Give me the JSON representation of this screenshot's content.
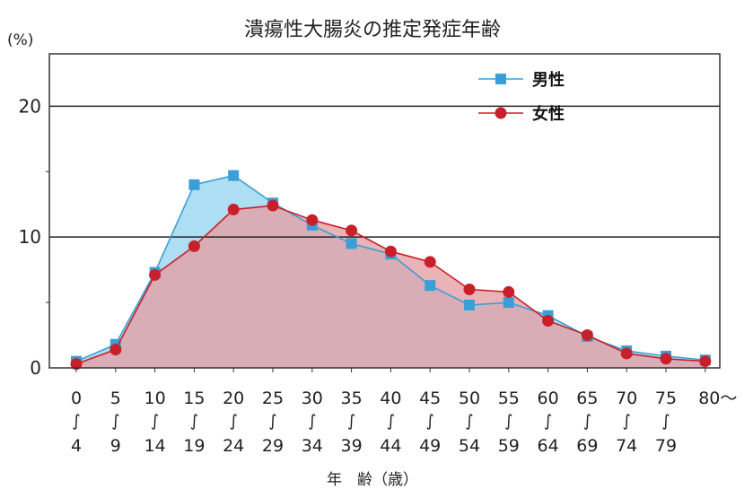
{
  "chart_data": {
    "type": "area",
    "title": "潰瘍性大腸炎の推定発症年齢",
    "ylabel": "(%)",
    "xlabel": "年　齢（歳）",
    "ylim": [
      0,
      24
    ],
    "yticks": [
      0,
      10,
      20
    ],
    "grid": true,
    "legend_position": "top-right",
    "categories": [
      {
        "top": "0",
        "bottom": "4"
      },
      {
        "top": "5",
        "bottom": "9"
      },
      {
        "top": "10",
        "bottom": "14"
      },
      {
        "top": "15",
        "bottom": "19"
      },
      {
        "top": "20",
        "bottom": "24"
      },
      {
        "top": "25",
        "bottom": "29"
      },
      {
        "top": "30",
        "bottom": "34"
      },
      {
        "top": "35",
        "bottom": "39"
      },
      {
        "top": "40",
        "bottom": "44"
      },
      {
        "top": "45",
        "bottom": "49"
      },
      {
        "top": "50",
        "bottom": "54"
      },
      {
        "top": "55",
        "bottom": "59"
      },
      {
        "top": "60",
        "bottom": "64"
      },
      {
        "top": "65",
        "bottom": "69"
      },
      {
        "top": "70",
        "bottom": "74"
      },
      {
        "top": "75",
        "bottom": "79"
      },
      {
        "top": "80～",
        "bottom": ""
      }
    ],
    "series": [
      {
        "name": "男性",
        "color": "#3a9fd6",
        "fill": "#a9dcf2",
        "marker": "square",
        "values": [
          0.5,
          1.8,
          7.3,
          14.0,
          14.7,
          12.6,
          10.9,
          9.5,
          8.7,
          6.3,
          4.8,
          5.0,
          4.0,
          2.4,
          1.3,
          0.9,
          0.6
        ]
      },
      {
        "name": "女性",
        "color": "#c8202a",
        "fill": "#e3a0a6",
        "marker": "circle",
        "values": [
          0.3,
          1.4,
          7.1,
          9.3,
          12.1,
          12.4,
          11.3,
          10.5,
          8.9,
          8.1,
          6.0,
          5.8,
          3.6,
          2.5,
          1.1,
          0.7,
          0.5
        ]
      }
    ]
  }
}
